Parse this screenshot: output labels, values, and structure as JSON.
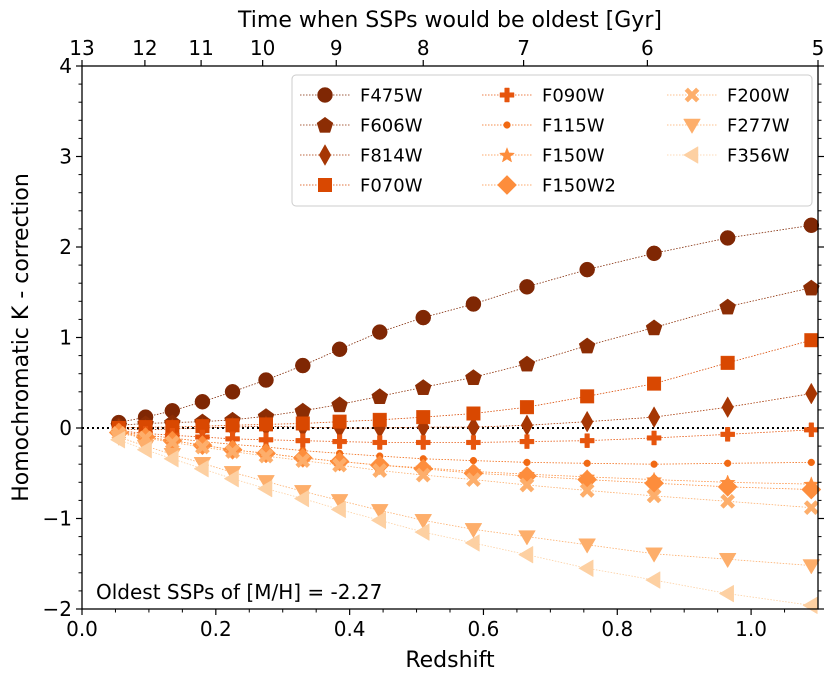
{
  "chart_data": {
    "type": "scatter",
    "title": "",
    "xlabel": "Redshift",
    "ylabel": "Homochromatic K - correction",
    "top_xlabel": "Time when SSPs would be oldest [Gyr]",
    "annotation": "Oldest SSPs of [M/H] = -2.27",
    "xlim": [
      0.0,
      1.1
    ],
    "ylim": [
      -2,
      4
    ],
    "x_ticks": [
      0.0,
      0.2,
      0.4,
      0.6,
      0.8,
      1.0
    ],
    "x_tick_labels": [
      "0.0",
      "0.2",
      "0.4",
      "0.6",
      "0.8",
      "1.0"
    ],
    "y_ticks": [
      -2,
      -1,
      0,
      1,
      2,
      3,
      4
    ],
    "y_tick_labels": [
      "−2",
      "−1",
      "0",
      "1",
      "2",
      "3",
      "4"
    ],
    "top_ticks": [
      {
        "label": "13",
        "z": 0.0
      },
      {
        "label": "12",
        "z": 0.094
      },
      {
        "label": "11",
        "z": 0.178
      },
      {
        "label": "10",
        "z": 0.27
      },
      {
        "label": "9",
        "z": 0.38
      },
      {
        "label": "8",
        "z": 0.51
      },
      {
        "label": "7",
        "z": 0.66
      },
      {
        "label": "6",
        "z": 0.845
      },
      {
        "label": "5",
        "z": 1.1
      }
    ],
    "reference_line": {
      "y": 0,
      "style": "dotted",
      "color": "#000000"
    },
    "legend_position": "top-right",
    "x": [
      0.055,
      0.095,
      0.135,
      0.18,
      0.225,
      0.275,
      0.33,
      0.385,
      0.445,
      0.51,
      0.585,
      0.665,
      0.755,
      0.855,
      0.965,
      1.09
    ],
    "series": [
      {
        "name": "F475W",
        "marker": "circle",
        "color": "#7f2704",
        "values": [
          0.06,
          0.12,
          0.19,
          0.29,
          0.4,
          0.53,
          0.69,
          0.87,
          1.06,
          1.22,
          1.37,
          1.56,
          1.75,
          1.93,
          2.1,
          2.24
        ]
      },
      {
        "name": "F606W",
        "marker": "pentagon",
        "color": "#8c2d04",
        "values": [
          0.03,
          0.05,
          0.06,
          0.07,
          0.09,
          0.13,
          0.19,
          0.26,
          0.35,
          0.45,
          0.56,
          0.71,
          0.91,
          1.11,
          1.34,
          1.55
        ]
      },
      {
        "name": "F814W",
        "marker": "thin_diamond",
        "color": "#a63603",
        "values": [
          -0.01,
          -0.02,
          -0.01,
          0.0,
          0.01,
          0.02,
          0.01,
          0.0,
          0.0,
          0.01,
          0.01,
          0.03,
          0.07,
          0.12,
          0.23,
          0.38
        ]
      },
      {
        "name": "F070W",
        "marker": "square",
        "color": "#d94801",
        "values": [
          0.0,
          0.01,
          0.01,
          0.02,
          0.03,
          0.04,
          0.05,
          0.07,
          0.09,
          0.12,
          0.16,
          0.23,
          0.35,
          0.49,
          0.72,
          0.97
        ]
      },
      {
        "name": "F090W",
        "marker": "plus",
        "color": "#e6550d",
        "values": [
          -0.03,
          -0.06,
          -0.08,
          -0.1,
          -0.12,
          -0.13,
          -0.14,
          -0.15,
          -0.16,
          -0.16,
          -0.16,
          -0.15,
          -0.14,
          -0.11,
          -0.07,
          -0.02
        ]
      },
      {
        "name": "F115W",
        "marker": "point",
        "color": "#f16913",
        "values": [
          -0.04,
          -0.08,
          -0.11,
          -0.15,
          -0.18,
          -0.21,
          -0.25,
          -0.28,
          -0.31,
          -0.34,
          -0.36,
          -0.38,
          -0.39,
          -0.4,
          -0.39,
          -0.38
        ]
      },
      {
        "name": "F150W",
        "marker": "star",
        "color": "#fd8d3c",
        "values": [
          -0.05,
          -0.1,
          -0.14,
          -0.19,
          -0.24,
          -0.28,
          -0.33,
          -0.37,
          -0.41,
          -0.44,
          -0.48,
          -0.51,
          -0.54,
          -0.57,
          -0.6,
          -0.62
        ]
      },
      {
        "name": "F150W2",
        "marker": "diamond",
        "color": "#fd8d3c",
        "values": [
          -0.05,
          -0.1,
          -0.14,
          -0.19,
          -0.24,
          -0.28,
          -0.33,
          -0.37,
          -0.41,
          -0.45,
          -0.5,
          -0.53,
          -0.57,
          -0.61,
          -0.65,
          -0.68
        ]
      },
      {
        "name": "F200W",
        "marker": "x_filled",
        "color": "#fdae6b",
        "values": [
          -0.06,
          -0.11,
          -0.16,
          -0.21,
          -0.26,
          -0.31,
          -0.36,
          -0.41,
          -0.47,
          -0.52,
          -0.57,
          -0.63,
          -0.69,
          -0.75,
          -0.81,
          -0.88
        ]
      },
      {
        "name": "F277W",
        "marker": "triangle_down",
        "color": "#fdae6b",
        "values": [
          -0.1,
          -0.2,
          -0.29,
          -0.39,
          -0.49,
          -0.59,
          -0.7,
          -0.8,
          -0.91,
          -1.02,
          -1.12,
          -1.2,
          -1.29,
          -1.39,
          -1.45,
          -1.52
        ]
      },
      {
        "name": "F356W",
        "marker": "triangle_left",
        "color": "#fdd0a2",
        "values": [
          -0.13,
          -0.24,
          -0.34,
          -0.45,
          -0.56,
          -0.67,
          -0.78,
          -0.9,
          -1.02,
          -1.15,
          -1.27,
          -1.4,
          -1.55,
          -1.68,
          -1.83,
          -1.96
        ]
      }
    ]
  }
}
